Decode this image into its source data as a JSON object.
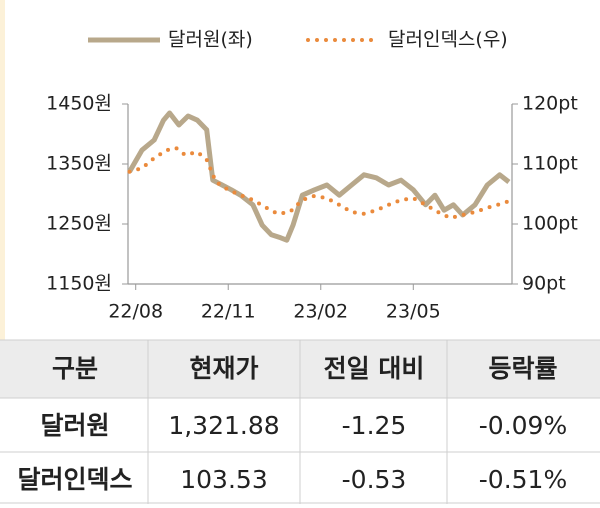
{
  "chart_data": {
    "type": "line",
    "xlim": [
      -0.25,
      12.2
    ],
    "xticks": [
      {
        "value": 0,
        "label": "22/08"
      },
      {
        "value": 3,
        "label": "22/11"
      },
      {
        "value": 6,
        "label": "23/02"
      },
      {
        "value": 9,
        "label": "23/05"
      }
    ],
    "ylim": [
      1150,
      1450
    ],
    "yticks": [
      {
        "value": 1450,
        "label": "1450원"
      },
      {
        "value": 1350,
        "label": "1350원"
      },
      {
        "value": 1250,
        "label": "1250원"
      },
      {
        "value": 1150,
        "label": "1150원"
      }
    ],
    "y2lim": [
      90,
      120
    ],
    "y2ticks": [
      {
        "value": 120,
        "label": "120pt"
      },
      {
        "value": 110,
        "label": "110pt"
      },
      {
        "value": 100,
        "label": "100pt"
      },
      {
        "value": 90,
        "label": "90pt"
      }
    ],
    "series": [
      {
        "name": "달러원(좌)",
        "color": "#b8a88b",
        "style": "solid",
        "x": [
          -0.2,
          0.2,
          0.6,
          0.9,
          1.1,
          1.4,
          1.7,
          2.0,
          2.3,
          2.5,
          2.8,
          3.1,
          3.4,
          3.8,
          4.1,
          4.4,
          4.7,
          4.9,
          5.1,
          5.4,
          5.8,
          6.2,
          6.6,
          7.0,
          7.4,
          7.8,
          8.2,
          8.6,
          9.0,
          9.4,
          9.7,
          10.0,
          10.3,
          10.6,
          11.0,
          11.4,
          11.8,
          12.1
        ],
        "values": [
          1337,
          1373,
          1390,
          1423,
          1435,
          1415,
          1430,
          1423,
          1407,
          1323,
          1315,
          1307,
          1298,
          1282,
          1248,
          1232,
          1227,
          1223,
          1248,
          1298,
          1307,
          1315,
          1298,
          1315,
          1332,
          1327,
          1315,
          1323,
          1307,
          1282,
          1298,
          1273,
          1282,
          1265,
          1282,
          1315,
          1332,
          1320
        ]
      },
      {
        "name": "달러인덱스(우)",
        "color": "#ea8a3c",
        "style": "dotted",
        "axis": "y2",
        "x": [
          -0.2,
          0.2,
          0.6,
          1.0,
          1.3,
          1.6,
          2.0,
          2.3,
          2.6,
          3.0,
          3.4,
          3.8,
          4.2,
          4.6,
          5.0,
          5.4,
          5.8,
          6.2,
          6.6,
          7.0,
          7.4,
          7.8,
          8.2,
          8.6,
          9.0,
          9.4,
          9.8,
          10.2,
          10.6,
          11.0,
          11.4,
          11.8,
          12.1
        ],
        "values": [
          108.7,
          109.3,
          111,
          112.3,
          112.7,
          111.5,
          112,
          110.7,
          107,
          105.7,
          104.8,
          104,
          102.8,
          101.7,
          102,
          104,
          104.7,
          104.3,
          103.2,
          102,
          101.7,
          102.3,
          103.2,
          104,
          104.3,
          103.2,
          102,
          101,
          101.5,
          102,
          102.7,
          103.3,
          103.8
        ]
      }
    ]
  },
  "table": {
    "header": [
      "구분",
      "현재가",
      "전일 대비",
      "등락률"
    ],
    "rows": [
      [
        "달러원",
        "1,321.88",
        "-1.25",
        "-0.09%"
      ],
      [
        "달러인덱스",
        "103.53",
        "-0.53",
        "-0.51%"
      ]
    ]
  }
}
